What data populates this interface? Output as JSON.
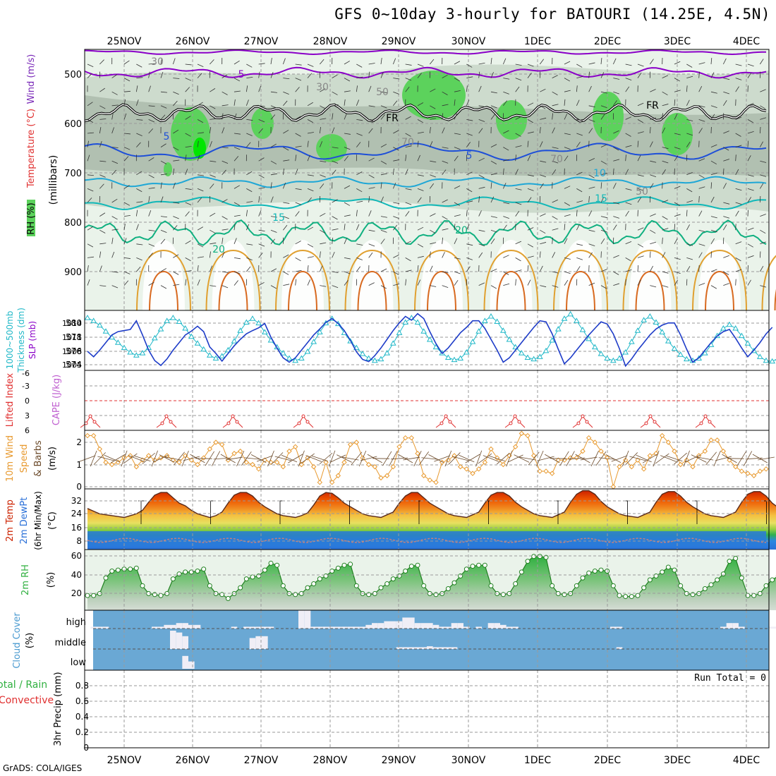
{
  "title": "GFS 0~10day 3-hourly for BATOURI (14.25E, 4.5N)",
  "credit": "GrADS: COLA/IGES",
  "dates": [
    "25NOV",
    "26NOV",
    "27NOV",
    "28NOV",
    "29NOV",
    "30NOV",
    "1DEC",
    "2DEC",
    "3DEC",
    "4DEC"
  ],
  "colors": {
    "rh_light": "#eaf3ea",
    "rh_mid": "#c3d3c3",
    "rh_dark": "#9aaa9a",
    "rh_green": "#5cd25c",
    "rh_bright": "#00e600",
    "temp_purple": "#8a00c8",
    "temp_blue": "#1e4fd8",
    "temp_cyan": "#1fa7d6",
    "temp_teal": "#10b8b8",
    "temp_green": "#10b080",
    "temp_orange": "#e0a030",
    "thickness": "#20b8c8",
    "slp": "#1e3cc8",
    "lifted_index": "#e03030",
    "wind_speed": "#e89a30",
    "cloud_bg": "#6aa8d4",
    "cloud_fill": "#f0eef6"
  },
  "panels": {
    "upper_air": {
      "ylabel": "(millibars)",
      "side_labels": [
        "Wind (m/s)",
        "Temperature (°C)",
        "RH (%)"
      ],
      "yticks": [
        500,
        600,
        700,
        800,
        900
      ],
      "contour_labels": [
        "5",
        "5",
        "5",
        "10",
        "15",
        "15",
        "20",
        "20",
        "FR",
        "FR",
        "30",
        "30",
        "50",
        "50",
        "70",
        "70"
      ]
    },
    "thickness_slp": {
      "side_labels": [
        "1000~500mb",
        "Thickness (dm)",
        "SLP (mb)"
      ],
      "left_ticks": [
        "580",
        "578",
        "576",
        "574"
      ],
      "right_ticks": [
        "1014",
        "1011",
        "1008",
        "1005"
      ]
    },
    "lifted_cape": {
      "side_labels": [
        "Lifted Index",
        "CAPE (J/kg)"
      ],
      "ticks": [
        "-6",
        "-3",
        "0",
        "3",
        "6"
      ]
    },
    "wind10m": {
      "side_labels": [
        "10m Wind",
        "Speed",
        "& Barbs",
        "(m/s)"
      ],
      "ticks": [
        "2",
        "1",
        "0"
      ]
    },
    "temp2m": {
      "side_labels": [
        "2m Temp",
        "2m DewPt",
        "(6hr Min/Max)",
        "(°C)"
      ],
      "ticks": [
        "32",
        "24",
        "16",
        "8"
      ]
    },
    "rh2m": {
      "side_labels": [
        "2m RH",
        "(%)"
      ],
      "ticks": [
        "60",
        "40",
        "20"
      ]
    },
    "cloud": {
      "side_labels": [
        "Cloud Cover",
        "(%)"
      ],
      "levels": [
        "high",
        "middle",
        "low"
      ]
    },
    "precip": {
      "side_labels": [
        "Total / Rain",
        "Convective",
        "3hr Precip (mm)"
      ],
      "ticks": [
        "0.8",
        "0.6",
        "0.4",
        "0.2",
        "0"
      ],
      "run_total": "Run Total = 0"
    }
  },
  "chart_data": [
    {
      "type": "line",
      "name": "1000-500mb thickness",
      "units": "dm",
      "ylim": [
        573,
        581
      ],
      "values": [
        580.0,
        579.6,
        579.0,
        578.2,
        577.4,
        576.7,
        576.0,
        575.4,
        575.0,
        575.3,
        576.0,
        577.3,
        578.5,
        579.6,
        580.0,
        579.5,
        578.6,
        577.5,
        576.6,
        575.8,
        575.0,
        574.6,
        574.9,
        575.7,
        576.9,
        578.3,
        579.4,
        579.9,
        579.3,
        578.1,
        577.0,
        576.1,
        575.3,
        574.6,
        574.3,
        574.6,
        575.5,
        576.8,
        578.1,
        579.3,
        579.9,
        579.2,
        578.0,
        576.9,
        576.0,
        575.2,
        574.6,
        574.3,
        574.5,
        575.3,
        576.6,
        578.0,
        579.4,
        580.0,
        579.4,
        578.2,
        577.1,
        576.1,
        575.3,
        574.7,
        574.4,
        574.6,
        575.4,
        576.8,
        578.2,
        579.6,
        580.2,
        579.5,
        578.3,
        577.1,
        576.1,
        575.3,
        574.7,
        574.5,
        574.8,
        575.6,
        577.0,
        578.5,
        579.9,
        580.5,
        579.6,
        578.4,
        577.2,
        576.1,
        575.2,
        574.6,
        574.3,
        574.6,
        575.4,
        576.8,
        578.3,
        579.7,
        580.2,
        579.4,
        578.1,
        576.9,
        575.9,
        575.1,
        574.5,
        574.3,
        574.6,
        575.3,
        576.4,
        577.6,
        578.6,
        579.1,
        578.6,
        577.6,
        576.6,
        575.6,
        574.8,
        574.3,
        574.2,
        574.6,
        575.6,
        576.6
      ]
    },
    {
      "type": "line",
      "name": "SLP",
      "units": "mb",
      "ylim": [
        1004.5,
        1015.5
      ],
      "values": [
        1008.0,
        1007.0,
        1008.2,
        1009.6,
        1011.0,
        1011.6,
        1011.8,
        1012.0,
        1013.6,
        1011.0,
        1008.2,
        1006.3,
        1005.4,
        1006.6,
        1008.2,
        1009.6,
        1011.0,
        1011.7,
        1012.6,
        1011.6,
        1008.8,
        1007.6,
        1006.2,
        1007.6,
        1009.0,
        1010.2,
        1011.2,
        1011.8,
        1012.3,
        1013.1,
        1010.6,
        1008.6,
        1006.8,
        1006.0,
        1006.8,
        1008.2,
        1009.6,
        1011.0,
        1012.1,
        1013.3,
        1014.0,
        1013.1,
        1011.8,
        1010.0,
        1007.9,
        1006.5,
        1006.1,
        1007.2,
        1008.6,
        1010.2,
        1011.8,
        1013.2,
        1014.4,
        1013.7,
        1014.9,
        1014.0,
        1011.6,
        1009.4,
        1007.6,
        1008.6,
        1010.0,
        1011.4,
        1012.4,
        1013.6,
        1013.6,
        1012.2,
        1010.2,
        1008.2,
        1006.0,
        1006.8,
        1008.2,
        1009.6,
        1011.0,
        1012.4,
        1013.6,
        1013.4,
        1011.2,
        1008.4,
        1005.7,
        1006.8,
        1008.2,
        1009.6,
        1011.0,
        1012.2,
        1013.4,
        1013.0,
        1011.2,
        1008.5,
        1005.3,
        1006.6,
        1008.2,
        1009.6,
        1011.0,
        1012.1,
        1012.8,
        1013.2,
        1013.2,
        1011.0,
        1008.4,
        1006.0,
        1006.8,
        1008.2,
        1009.6,
        1010.8,
        1011.6,
        1012.0,
        1010.4,
        1008.6,
        1007.0,
        1008.2,
        1009.6,
        1011.2,
        1012.4
      ]
    },
    {
      "type": "line",
      "name": "10m wind speed",
      "units": "m/s",
      "ylim": [
        0,
        2.5
      ],
      "values": [
        2.3,
        2.3,
        1.7,
        1.1,
        1.0,
        1.1,
        1.3,
        1.4,
        0.9,
        1.2,
        1.4,
        1.2,
        1.3,
        1.4,
        1.2,
        1.1,
        1.4,
        1.2,
        1.0,
        1.3,
        1.7,
        2.0,
        1.9,
        1.2,
        1.5,
        1.6,
        1.1,
        1.0,
        0.8,
        1.2,
        1.1,
        1.1,
        0.9,
        1.6,
        1.8,
        1.0,
        1.3,
        0.9,
        0.2,
        1.1,
        0.2,
        0.5,
        1.1,
        1.9,
        2.0,
        1.3,
        1.0,
        0.9,
        0.4,
        0.5,
        0.9,
        1.8,
        2.2,
        2.2,
        1.5,
        0.5,
        0.3,
        0.2,
        1.1,
        1.2,
        1.4,
        0.9,
        0.8,
        0.6,
        0.8,
        1.1,
        1.7,
        1.3,
        1.0,
        1.4,
        1.8,
        2.4,
        2.3,
        1.4,
        0.7,
        0.7,
        0.6,
        1.2,
        1.2,
        1.3,
        1.3,
        1.6,
        2.2,
        2.0,
        1.6,
        1.3,
        0.0,
        0.9,
        1.2,
        0.9,
        1.2,
        0.8,
        1.4,
        1.5,
        2.3,
        2.0,
        1.6,
        1.0,
        1.2,
        0.9,
        1.4,
        1.6,
        2.1,
        2.1,
        1.6,
        1.2,
        0.9,
        0.7,
        0.6,
        0.5,
        0.7,
        0.8
      ]
    },
    {
      "type": "area",
      "name": "2m temperature",
      "units": "°C",
      "ylim": [
        2,
        36
      ],
      "values": [
        25,
        23.5,
        22,
        21.5,
        21,
        20.5,
        20,
        21,
        22,
        24,
        28.5,
        32.5,
        34,
        34,
        31,
        28,
        26.5,
        24,
        22,
        21,
        20,
        21,
        23,
        28,
        32.5,
        34,
        34,
        32,
        28.5,
        26,
        24,
        22,
        21,
        20.5,
        20,
        21,
        22.5,
        27,
        32,
        34,
        33.5,
        31,
        28,
        26,
        24,
        22,
        21,
        20.5,
        20,
        21.5,
        23,
        28,
        32,
        34,
        34,
        31,
        28,
        26,
        24,
        22,
        21,
        20.5,
        20,
        21.5,
        23,
        28,
        32.5,
        34,
        34,
        32,
        28.5,
        26,
        24,
        22,
        21,
        20.5,
        20,
        21.5,
        23,
        28.5,
        33,
        35,
        35,
        33,
        29,
        26,
        24,
        22,
        21,
        20.5,
        20,
        21.5,
        23,
        28.5,
        33,
        34.5,
        34.5,
        32,
        28.5,
        26,
        24,
        22,
        21,
        20.5,
        20,
        21.5,
        23,
        28.5,
        33,
        34.5,
        34.5,
        32,
        28,
        25.5,
        23,
        21,
        20,
        18.5
      ]
    },
    {
      "type": "area",
      "name": "2m RH",
      "units": "%",
      "ylim": [
        5,
        67
      ],
      "values": [
        20,
        20,
        22,
        38,
        45,
        46,
        47,
        47,
        48,
        30,
        22,
        21,
        20,
        22,
        37,
        42,
        44,
        44,
        45,
        47,
        30,
        22,
        21,
        17,
        22,
        28,
        37,
        39,
        40,
        46,
        53,
        51,
        30,
        22,
        21,
        22,
        28,
        32,
        37,
        40,
        45,
        48,
        51,
        52,
        30,
        22,
        21,
        22,
        28,
        32,
        37,
        40,
        45,
        50,
        51,
        30,
        22,
        21,
        22,
        27,
        33,
        40,
        47,
        50,
        51,
        51,
        30,
        22,
        21,
        22,
        32,
        44,
        55,
        60,
        60,
        59,
        30,
        22,
        21,
        22,
        30,
        38,
        43,
        45,
        46,
        45,
        30,
        20,
        19,
        19,
        20,
        28,
        36,
        40,
        44,
        49,
        46,
        30,
        22,
        21,
        22,
        27,
        31,
        36,
        42,
        55,
        58,
        38,
        20,
        20,
        22,
        30,
        36,
        40,
        42,
        45
      ]
    },
    {
      "type": "bar",
      "name": "high cloud cover",
      "units": "%",
      "values": [
        0,
        10,
        10,
        10,
        0,
        0,
        0,
        0,
        0,
        0,
        0,
        10,
        10,
        20,
        20,
        30,
        30,
        20,
        20,
        0,
        0,
        0,
        0,
        0,
        10,
        0,
        10,
        10,
        10,
        10,
        10,
        0,
        0,
        0,
        0,
        100,
        100,
        10,
        10,
        10,
        10,
        10,
        10,
        10,
        10,
        10,
        20,
        30,
        30,
        40,
        40,
        40,
        60,
        60,
        30,
        30,
        30,
        20,
        10,
        10,
        30,
        30,
        10,
        0,
        10,
        0,
        30,
        30,
        20,
        10,
        10,
        0,
        0,
        0,
        0,
        0,
        0,
        0,
        0,
        0,
        0,
        0,
        0,
        0,
        0,
        0,
        10,
        10,
        0,
        0,
        0,
        0,
        0,
        0,
        0,
        0,
        0,
        0,
        0,
        0,
        0,
        0,
        0,
        0,
        10,
        30,
        30,
        10,
        0,
        0,
        0,
        0,
        10,
        10
      ]
    },
    {
      "type": "bar",
      "name": "middle cloud cover",
      "units": "%",
      "values": [
        0,
        0,
        0,
        0,
        0,
        0,
        0,
        0,
        0,
        0,
        0,
        0,
        0,
        0,
        100,
        90,
        70,
        0,
        0,
        0,
        0,
        0,
        0,
        0,
        0,
        0,
        0,
        60,
        70,
        70,
        0,
        0,
        0,
        0,
        0,
        0,
        0,
        0,
        0,
        0,
        0,
        0,
        0,
        0,
        0,
        0,
        0,
        0,
        0,
        0,
        0,
        10,
        10,
        10,
        10,
        10,
        15,
        10,
        10,
        10,
        10,
        0,
        0,
        0,
        0,
        0,
        0,
        0,
        0,
        0,
        0,
        0,
        0,
        0,
        0,
        0,
        0,
        0,
        0,
        0,
        0,
        0,
        0,
        0,
        0,
        0,
        0,
        10,
        0,
        0,
        0,
        0,
        0,
        0,
        0,
        0,
        0,
        0,
        0,
        0,
        0,
        0,
        0,
        0,
        0,
        0,
        0,
        0,
        0,
        0,
        0,
        0,
        0,
        0
      ]
    },
    {
      "type": "bar",
      "name": "low cloud cover",
      "units": "%",
      "values": [
        0,
        0,
        0,
        0,
        0,
        0,
        0,
        0,
        0,
        0,
        0,
        0,
        0,
        0,
        0,
        0,
        70,
        40,
        0,
        0,
        0,
        0,
        0,
        0,
        0,
        0,
        0,
        0,
        0,
        0,
        0,
        0,
        0,
        0,
        0,
        0,
        0,
        0,
        0,
        0,
        0,
        0,
        0,
        0,
        0,
        0,
        0,
        0,
        0,
        0,
        0,
        0,
        0,
        0,
        0,
        0,
        0,
        0,
        0,
        0,
        0,
        0,
        0,
        0,
        0,
        0,
        0,
        0,
        0,
        0,
        0,
        0,
        0,
        0,
        0,
        0,
        0,
        0,
        0,
        0,
        0,
        0,
        0,
        0,
        0,
        0,
        0,
        0,
        0,
        0,
        0,
        0,
        0,
        0,
        0,
        0,
        0,
        0,
        0,
        0,
        0,
        0,
        0,
        0,
        0,
        0,
        0,
        0,
        0,
        0,
        0,
        0,
        0,
        0
      ]
    },
    {
      "type": "bar",
      "name": "3hr precip",
      "units": "mm",
      "ylim": [
        0,
        1
      ],
      "values": []
    }
  ]
}
